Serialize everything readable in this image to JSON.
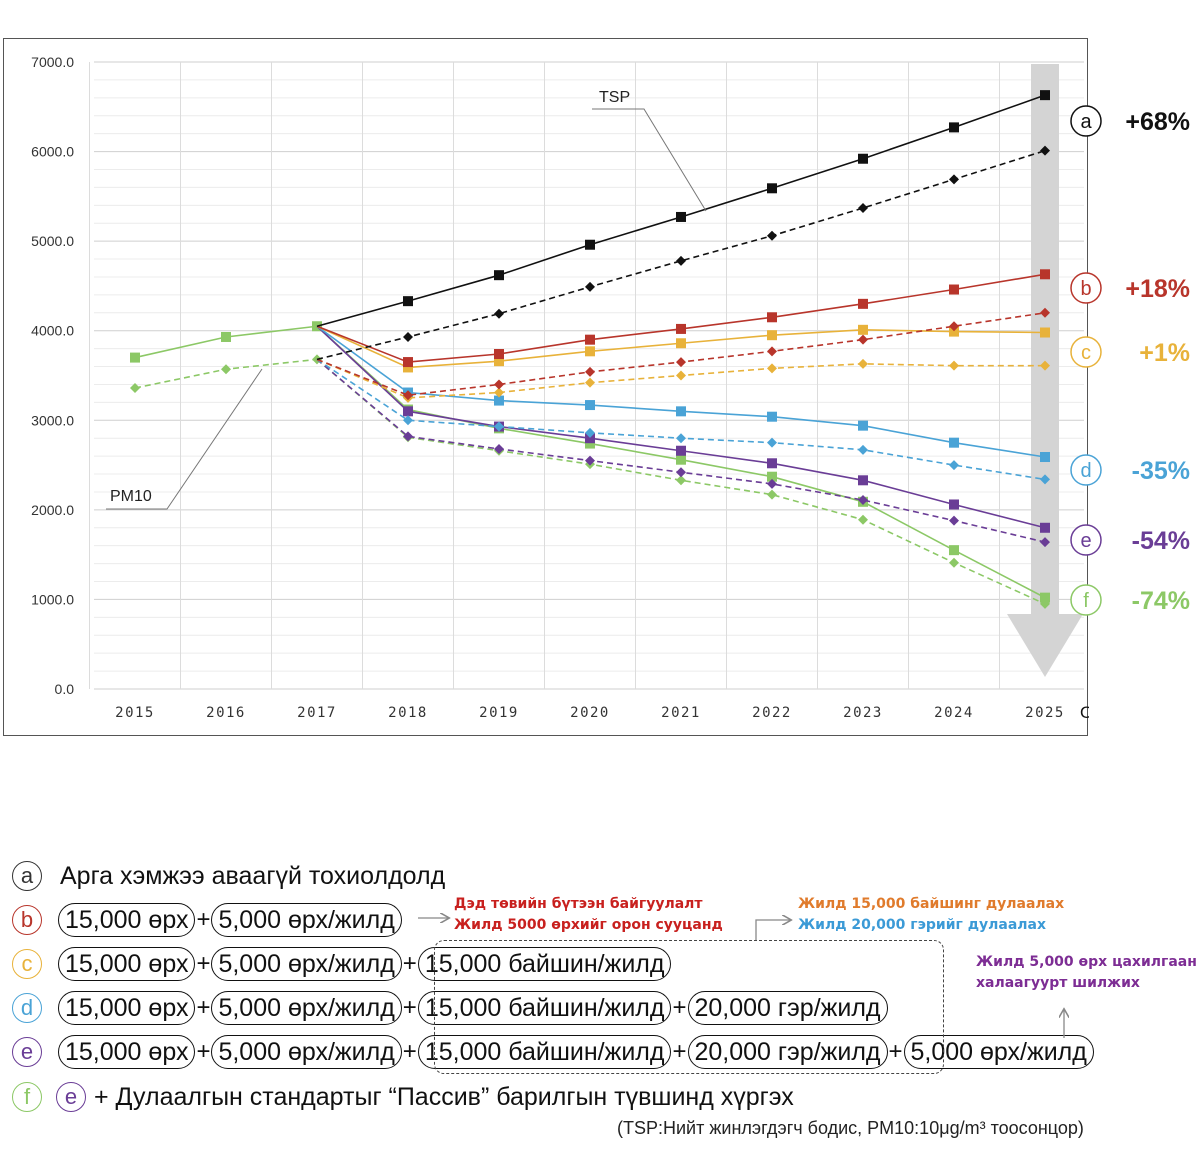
{
  "chart_data": {
    "type": "line",
    "x": [
      2015,
      2016,
      2017,
      2018,
      2019,
      2020,
      2021,
      2022,
      2023,
      2024,
      2025
    ],
    "x_tick_labels": [
      "2015",
      "2016",
      "2017",
      "2018",
      "2019",
      "2020",
      "2021",
      "2022",
      "2023",
      "2024",
      "2025"
    ],
    "xlabel": "Он",
    "ylim": [
      0,
      7000
    ],
    "y_tick_labels": [
      "0.0",
      "1000.0",
      "2000.0",
      "3000.0",
      "4000.0",
      "5000.0",
      "6000.0",
      "7000.0"
    ],
    "grid": true,
    "history": {
      "TSP": [
        3700,
        3930,
        4050
      ],
      "PM10": [
        3360,
        3570,
        3680
      ]
    },
    "series_labels": {
      "TSP": "TSP",
      "PM10": "PM10"
    },
    "series": [
      {
        "name": "a",
        "color": "#111111",
        "change": "+68%",
        "TSP": [
          4050,
          4330,
          4620,
          4960,
          5270,
          5590,
          5920,
          6270,
          6630
        ],
        "PM10": [
          3680,
          3930,
          4190,
          4490,
          4780,
          5060,
          5370,
          5690,
          6010
        ]
      },
      {
        "name": "b",
        "color": "#b8352b",
        "change": "+18%",
        "TSP": [
          4050,
          3650,
          3740,
          3900,
          4020,
          4150,
          4300,
          4460,
          4630
        ],
        "PM10": [
          3680,
          3280,
          3400,
          3540,
          3650,
          3770,
          3900,
          4050,
          4200
        ]
      },
      {
        "name": "c",
        "color": "#e8b23a",
        "change": "+1%",
        "TSP": [
          4050,
          3590,
          3660,
          3770,
          3860,
          3950,
          4010,
          3990,
          3980
        ],
        "PM10": [
          3680,
          3250,
          3310,
          3420,
          3500,
          3580,
          3630,
          3610,
          3610
        ]
      },
      {
        "name": "d",
        "color": "#4aa3d6",
        "change": "-35%",
        "TSP": [
          4050,
          3310,
          3220,
          3170,
          3100,
          3040,
          2940,
          2750,
          2590
        ],
        "PM10": [
          3680,
          3000,
          2930,
          2860,
          2800,
          2750,
          2670,
          2500,
          2340
        ]
      },
      {
        "name": "e",
        "color": "#6a3d96",
        "change": "-54%",
        "TSP": [
          4050,
          3100,
          2930,
          2800,
          2660,
          2520,
          2330,
          2060,
          1800
        ],
        "PM10": [
          3680,
          2820,
          2680,
          2550,
          2420,
          2290,
          2110,
          1880,
          1640
        ]
      },
      {
        "name": "f",
        "color": "#8cc866",
        "change": "-74%",
        "TSP": [
          4050,
          3120,
          2910,
          2740,
          2560,
          2370,
          2090,
          1550,
          1020
        ],
        "PM10": [
          3680,
          2810,
          2660,
          2510,
          2330,
          2170,
          1890,
          1410,
          950
        ]
      }
    ]
  },
  "legend": {
    "letters": {
      "a": "a",
      "b": "b",
      "c": "c",
      "d": "d",
      "e": "e",
      "f": "f"
    },
    "a_text": "Арга хэмжээ аваагүй тохиолдолд",
    "pill_15000_ger": "15,000 өрх",
    "pill_5000_ger_year": "5,000 өрх/жилд",
    "pill_15000_building": "15,000 байшин/жилд",
    "pill_20000_ger": "20,000 гэр/жилд",
    "plus": "+",
    "f_text": "+ Дулаалгын стандартыг “Пассив” барилгын түвшинд хүргэх",
    "note_red_1": "Дэд төвийн бүтээн байгуулалт",
    "note_red_2": "Жилд 5000 өрхийг орон сууцанд",
    "note_orange": "Жилд 15,000 байшинг дулаалах",
    "note_blue": "Жилд 20,000 гэрийг дулаалах",
    "note_purple_1": "Жилд 5,000 өрх цахилгаан",
    "note_purple_2": "халаагуурт шилжих",
    "source": "(TSP:Нийт жинлэгдэгч бодис, PM10:10μg/m³ тоосонцор)"
  },
  "colors": {
    "a": "#111111",
    "b": "#b8352b",
    "c": "#e8b23a",
    "d": "#4aa3d6",
    "e": "#6a3d96",
    "f": "#8cc866",
    "history": "#8cc866",
    "note_red": "#c8201e",
    "note_orange": "#e07b2c",
    "note_blue": "#3b9ad6",
    "note_purple": "#7d2d94"
  }
}
